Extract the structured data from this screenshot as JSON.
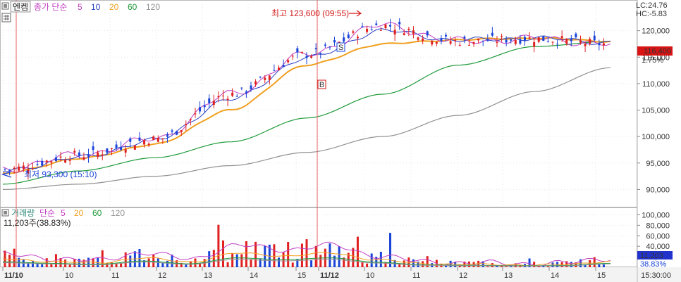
{
  "price_panel": {
    "toolbar_button": "엔켐",
    "indicator_title": "종가 단순",
    "ma_periods": [
      "5",
      "10",
      "20",
      "60",
      "120"
    ],
    "ma_colors": [
      "#c23fc2",
      "#2a3ec4",
      "#f0a020",
      "#1f9a3a",
      "#909090"
    ],
    "lc_label": "LC:24.76",
    "hc_label": "HC:-5.83",
    "high_annotation": "최고 123,600 (09:55)",
    "low_annotation": "최저 93,300 (15:10)",
    "current_price": "116,400",
    "change_percent": "1.75%",
    "signal_s": "S",
    "signal_b": "B",
    "colors": {
      "up": "#e02020",
      "down": "#1a44d8",
      "current_badge_bg": "#d81414",
      "volume_badge_bg": "#2233cc"
    }
  },
  "volume_panel": {
    "title": "거래량",
    "ma_title": "단순",
    "ma_periods": [
      "5",
      "20",
      "60",
      "120"
    ],
    "ma_colors": [
      "#c23fc2",
      "#f0a020",
      "#1f9a3a",
      "#909090"
    ],
    "info": "11,203주(38.83%)",
    "current_volume": "11,203",
    "current_percent": "38.83%"
  },
  "time_axis": {
    "labels": [
      "11/10",
      "10",
      "11",
      "12",
      "13",
      "14",
      "15",
      "11/12",
      "10",
      "11",
      "12",
      "13",
      "14",
      "15"
    ],
    "end_label": "15:30:00"
  },
  "chart_data": [
    {
      "type": "line",
      "title": "종가 단순",
      "y_ticks": [
        "120,000",
        "115,000",
        "110,000",
        "105,000",
        "100,000",
        "95,000",
        "90,000"
      ],
      "ylim": [
        87000,
        125000
      ],
      "x": [
        "11/10 09:00",
        "11/10 11:00",
        "11/10 13:00",
        "11/10 15:00",
        "11/12 09:00",
        "11/12 09:55",
        "11/12 11:00",
        "11/12 13:00",
        "11/12 15:00"
      ],
      "series": [
        {
          "name": "5",
          "values": [
            93800,
            96500,
            99500,
            108000,
            115500,
            121000,
            118000,
            118500,
            117500
          ]
        },
        {
          "name": "10",
          "values": [
            93500,
            96000,
            99300,
            107000,
            114800,
            120000,
            118200,
            118600,
            117800
          ]
        },
        {
          "name": "20",
          "values": [
            93000,
            95800,
            98500,
            105000,
            113500,
            117500,
            118300,
            118600,
            118000
          ]
        },
        {
          "name": "60",
          "values": [
            91000,
            93500,
            96000,
            99000,
            103500,
            108000,
            113500,
            117000,
            118000
          ]
        },
        {
          "name": "120",
          "values": [
            90000,
            91000,
            92500,
            94500,
            97000,
            100000,
            104000,
            108500,
            113000
          ]
        }
      ],
      "high": {
        "label": "123,600",
        "time": "09:55"
      },
      "low": {
        "label": "93,300",
        "time": "15:10"
      },
      "last": 116400
    },
    {
      "type": "bar",
      "title": "거래량",
      "y_ticks": [
        "100,000",
        "80,000",
        "60,000",
        "40,000",
        "20,000"
      ],
      "ylim": [
        0,
        110000
      ],
      "x": [
        "11/10 09:00",
        "11/10 10:00",
        "11/10 11:00",
        "11/10 12:00",
        "11/10 13:00",
        "11/10 14:00",
        "11/10 15:00",
        "11/12 09:00",
        "11/12 10:00",
        "11/12 11:00",
        "11/12 12:00",
        "11/12 13:00",
        "11/12 14:00",
        "11/12 15:00"
      ],
      "values": [
        35000,
        25000,
        18000,
        40000,
        22000,
        60000,
        48000,
        60000,
        32000,
        15000,
        12000,
        10000,
        11000,
        25000
      ],
      "last": 11203
    }
  ]
}
